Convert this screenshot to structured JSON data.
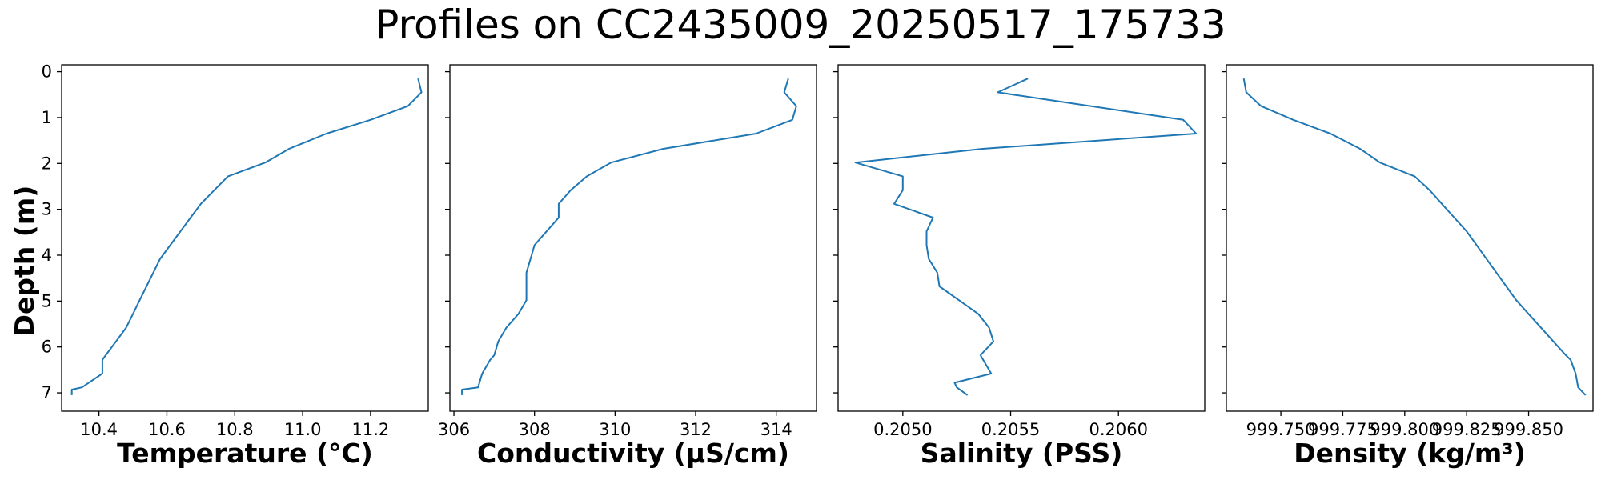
{
  "figure": {
    "title": "Profiles on CC2435009_20250517_175733",
    "ylabel": "Depth (m)",
    "line_color": "#1f77b4",
    "ylim": [
      7.4,
      -0.15
    ],
    "y_ticks": [
      0,
      1,
      2,
      3,
      4,
      5,
      6,
      7
    ]
  },
  "chart_data": [
    {
      "type": "line",
      "xlabel": "Temperature (°C)",
      "ylabel": "Depth (m)",
      "xlim": [
        10.29,
        11.37
      ],
      "x_ticks": [
        10.4,
        10.6,
        10.8,
        11.0,
        11.2
      ],
      "x_tick_labels": [
        "10.4",
        "10.6",
        "10.8",
        "11.0",
        "11.2"
      ],
      "series": [
        {
          "x": [
            11.34,
            11.35,
            11.31,
            11.2,
            11.07,
            10.96,
            10.89,
            10.78,
            10.74,
            10.7,
            10.67,
            10.64,
            10.61,
            10.58,
            10.56,
            10.54,
            10.52,
            10.5,
            10.48,
            10.45,
            10.42,
            10.41,
            10.41,
            10.35,
            10.32,
            10.32
          ],
          "y": [
            0.15,
            0.45,
            0.75,
            1.05,
            1.35,
            1.68,
            1.98,
            2.28,
            2.58,
            2.88,
            3.18,
            3.48,
            3.78,
            4.08,
            4.38,
            4.68,
            4.98,
            5.28,
            5.58,
            5.88,
            6.18,
            6.28,
            6.58,
            6.88,
            6.93,
            7.05
          ]
        }
      ]
    },
    {
      "type": "line",
      "xlabel": "Conductivity (µS/cm)",
      "ylabel": "",
      "xlim": [
        305.9,
        315.0
      ],
      "x_ticks": [
        306,
        308,
        310,
        312,
        314
      ],
      "x_tick_labels": [
        "306",
        "308",
        "310",
        "312",
        "314"
      ],
      "series": [
        {
          "x": [
            314.3,
            314.2,
            314.5,
            314.4,
            313.5,
            311.2,
            309.9,
            309.3,
            308.9,
            308.6,
            308.6,
            308.3,
            308.0,
            307.9,
            307.8,
            307.8,
            307.8,
            307.6,
            307.3,
            307.1,
            307.0,
            306.9,
            306.7,
            306.6,
            306.2,
            306.2
          ],
          "y": [
            0.15,
            0.45,
            0.75,
            1.05,
            1.35,
            1.68,
            1.98,
            2.28,
            2.58,
            2.88,
            3.18,
            3.48,
            3.78,
            4.08,
            4.38,
            4.68,
            4.98,
            5.28,
            5.58,
            5.88,
            6.18,
            6.28,
            6.58,
            6.88,
            6.93,
            7.05
          ]
        }
      ]
    },
    {
      "type": "line",
      "xlabel": "Salinity (PSS)",
      "ylabel": "",
      "xlim": [
        0.2047,
        0.2064
      ],
      "x_ticks": [
        0.205,
        0.2055,
        0.206
      ],
      "x_tick_labels": [
        "0.2050",
        "0.2055",
        "0.2060"
      ],
      "series": [
        {
          "x": [
            0.20558,
            0.20544,
            0.2063,
            0.20636,
            0.20537,
            0.20478,
            0.205,
            0.205,
            0.20496,
            0.20514,
            0.20511,
            0.20511,
            0.20512,
            0.20516,
            0.20517,
            0.20526,
            0.20535,
            0.2054,
            0.20542,
            0.20536,
            0.20541,
            0.20524,
            0.20525,
            0.2053
          ],
          "y": [
            0.15,
            0.45,
            1.05,
            1.35,
            1.68,
            1.98,
            2.28,
            2.58,
            2.88,
            3.18,
            3.48,
            3.78,
            4.08,
            4.38,
            4.68,
            4.98,
            5.28,
            5.58,
            5.88,
            6.18,
            6.58,
            6.78,
            6.88,
            7.05
          ]
        }
      ]
    },
    {
      "type": "line",
      "xlabel": "Density (kg/m³)",
      "ylabel": "",
      "xlim": [
        999.728,
        999.876
      ],
      "x_ticks": [
        999.75,
        999.775,
        999.8,
        999.825,
        999.85
      ],
      "x_tick_labels": [
        "999.750",
        "999.775",
        "999.800",
        "999.825",
        "999.850"
      ],
      "series": [
        {
          "x": [
            999.735,
            999.736,
            999.742,
            999.755,
            999.77,
            999.782,
            999.79,
            999.804,
            999.81,
            999.815,
            999.82,
            999.825,
            999.829,
            999.833,
            999.837,
            999.841,
            999.845,
            999.85,
            999.855,
            999.86,
            999.865,
            999.867,
            999.869,
            999.87,
            999.873
          ],
          "y": [
            0.15,
            0.45,
            0.75,
            1.05,
            1.35,
            1.68,
            1.98,
            2.28,
            2.58,
            2.88,
            3.18,
            3.48,
            3.78,
            4.08,
            4.38,
            4.68,
            4.98,
            5.28,
            5.58,
            5.88,
            6.18,
            6.28,
            6.58,
            6.88,
            7.05
          ]
        }
      ]
    }
  ]
}
